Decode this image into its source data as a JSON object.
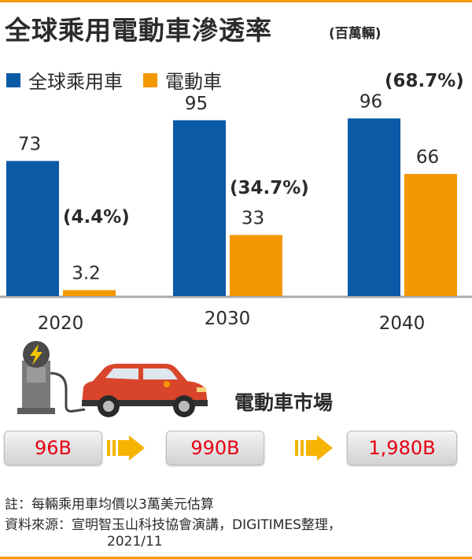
{
  "title": "全球乘用電動車滲透率",
  "unit": "(百萬輛)",
  "legend": {
    "series_a": "全球乘用車",
    "series_b": "電動車"
  },
  "colors": {
    "series_a": "#0b5aa6",
    "series_b": "#f39800",
    "accent": "#e60012",
    "arrow": "#f5b400"
  },
  "chart_data": {
    "type": "bar",
    "categories": [
      "2020",
      "2030",
      "2040"
    ],
    "series": [
      {
        "name": "全球乘用車",
        "values": [
          73,
          95,
          96
        ],
        "labels": [
          "73",
          "95",
          "96"
        ]
      },
      {
        "name": "電動車",
        "values": [
          3.2,
          33,
          66
        ],
        "labels": [
          "3.2",
          "33",
          "66"
        ]
      }
    ],
    "annotations": [
      "(4.4%)",
      "(34.7%)",
      "(68.7%)"
    ],
    "title": "全球乘用電動車滲透率",
    "ylabel": "(百萬輛)",
    "ylim": [
      0,
      100
    ],
    "grid": false,
    "legend_position": "top-left"
  },
  "market": {
    "title": "電動車市場",
    "values": [
      "96B",
      "990B",
      "1,980B"
    ]
  },
  "notes": {
    "line1": "註：每輛乘用車均價以3萬美元估算",
    "line2": "資料來源：宣明智玉山科技協會演講，DIGITIMES整理，",
    "line3": "2021/11"
  }
}
